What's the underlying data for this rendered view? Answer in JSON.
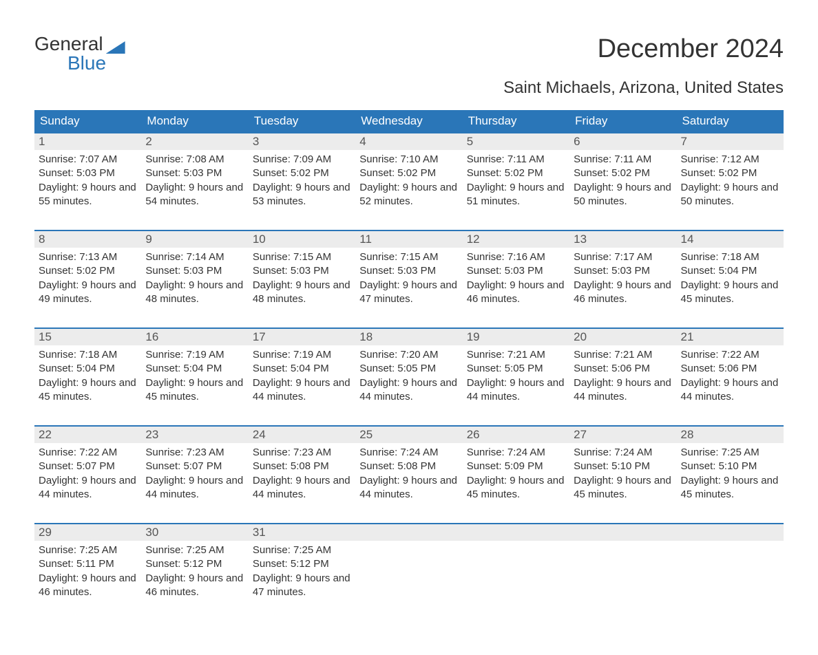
{
  "logo": {
    "word1": "General",
    "word2": "Blue"
  },
  "title": "December 2024",
  "location": "Saint Michaels, Arizona, United States",
  "colors": {
    "accent": "#2a76b8",
    "header_text": "#ffffff",
    "daynum_bg": "#ececec",
    "text": "#333333",
    "background": "#ffffff"
  },
  "day_headers": [
    "Sunday",
    "Monday",
    "Tuesday",
    "Wednesday",
    "Thursday",
    "Friday",
    "Saturday"
  ],
  "weeks": [
    [
      {
        "n": "1",
        "sr": "Sunrise: 7:07 AM",
        "ss": "Sunset: 5:03 PM",
        "dl": "Daylight: 9 hours and 55 minutes."
      },
      {
        "n": "2",
        "sr": "Sunrise: 7:08 AM",
        "ss": "Sunset: 5:03 PM",
        "dl": "Daylight: 9 hours and 54 minutes."
      },
      {
        "n": "3",
        "sr": "Sunrise: 7:09 AM",
        "ss": "Sunset: 5:02 PM",
        "dl": "Daylight: 9 hours and 53 minutes."
      },
      {
        "n": "4",
        "sr": "Sunrise: 7:10 AM",
        "ss": "Sunset: 5:02 PM",
        "dl": "Daylight: 9 hours and 52 minutes."
      },
      {
        "n": "5",
        "sr": "Sunrise: 7:11 AM",
        "ss": "Sunset: 5:02 PM",
        "dl": "Daylight: 9 hours and 51 minutes."
      },
      {
        "n": "6",
        "sr": "Sunrise: 7:11 AM",
        "ss": "Sunset: 5:02 PM",
        "dl": "Daylight: 9 hours and 50 minutes."
      },
      {
        "n": "7",
        "sr": "Sunrise: 7:12 AM",
        "ss": "Sunset: 5:02 PM",
        "dl": "Daylight: 9 hours and 50 minutes."
      }
    ],
    [
      {
        "n": "8",
        "sr": "Sunrise: 7:13 AM",
        "ss": "Sunset: 5:02 PM",
        "dl": "Daylight: 9 hours and 49 minutes."
      },
      {
        "n": "9",
        "sr": "Sunrise: 7:14 AM",
        "ss": "Sunset: 5:03 PM",
        "dl": "Daylight: 9 hours and 48 minutes."
      },
      {
        "n": "10",
        "sr": "Sunrise: 7:15 AM",
        "ss": "Sunset: 5:03 PM",
        "dl": "Daylight: 9 hours and 48 minutes."
      },
      {
        "n": "11",
        "sr": "Sunrise: 7:15 AM",
        "ss": "Sunset: 5:03 PM",
        "dl": "Daylight: 9 hours and 47 minutes."
      },
      {
        "n": "12",
        "sr": "Sunrise: 7:16 AM",
        "ss": "Sunset: 5:03 PM",
        "dl": "Daylight: 9 hours and 46 minutes."
      },
      {
        "n": "13",
        "sr": "Sunrise: 7:17 AM",
        "ss": "Sunset: 5:03 PM",
        "dl": "Daylight: 9 hours and 46 minutes."
      },
      {
        "n": "14",
        "sr": "Sunrise: 7:18 AM",
        "ss": "Sunset: 5:04 PM",
        "dl": "Daylight: 9 hours and 45 minutes."
      }
    ],
    [
      {
        "n": "15",
        "sr": "Sunrise: 7:18 AM",
        "ss": "Sunset: 5:04 PM",
        "dl": "Daylight: 9 hours and 45 minutes."
      },
      {
        "n": "16",
        "sr": "Sunrise: 7:19 AM",
        "ss": "Sunset: 5:04 PM",
        "dl": "Daylight: 9 hours and 45 minutes."
      },
      {
        "n": "17",
        "sr": "Sunrise: 7:19 AM",
        "ss": "Sunset: 5:04 PM",
        "dl": "Daylight: 9 hours and 44 minutes."
      },
      {
        "n": "18",
        "sr": "Sunrise: 7:20 AM",
        "ss": "Sunset: 5:05 PM",
        "dl": "Daylight: 9 hours and 44 minutes."
      },
      {
        "n": "19",
        "sr": "Sunrise: 7:21 AM",
        "ss": "Sunset: 5:05 PM",
        "dl": "Daylight: 9 hours and 44 minutes."
      },
      {
        "n": "20",
        "sr": "Sunrise: 7:21 AM",
        "ss": "Sunset: 5:06 PM",
        "dl": "Daylight: 9 hours and 44 minutes."
      },
      {
        "n": "21",
        "sr": "Sunrise: 7:22 AM",
        "ss": "Sunset: 5:06 PM",
        "dl": "Daylight: 9 hours and 44 minutes."
      }
    ],
    [
      {
        "n": "22",
        "sr": "Sunrise: 7:22 AM",
        "ss": "Sunset: 5:07 PM",
        "dl": "Daylight: 9 hours and 44 minutes."
      },
      {
        "n": "23",
        "sr": "Sunrise: 7:23 AM",
        "ss": "Sunset: 5:07 PM",
        "dl": "Daylight: 9 hours and 44 minutes."
      },
      {
        "n": "24",
        "sr": "Sunrise: 7:23 AM",
        "ss": "Sunset: 5:08 PM",
        "dl": "Daylight: 9 hours and 44 minutes."
      },
      {
        "n": "25",
        "sr": "Sunrise: 7:24 AM",
        "ss": "Sunset: 5:08 PM",
        "dl": "Daylight: 9 hours and 44 minutes."
      },
      {
        "n": "26",
        "sr": "Sunrise: 7:24 AM",
        "ss": "Sunset: 5:09 PM",
        "dl": "Daylight: 9 hours and 45 minutes."
      },
      {
        "n": "27",
        "sr": "Sunrise: 7:24 AM",
        "ss": "Sunset: 5:10 PM",
        "dl": "Daylight: 9 hours and 45 minutes."
      },
      {
        "n": "28",
        "sr": "Sunrise: 7:25 AM",
        "ss": "Sunset: 5:10 PM",
        "dl": "Daylight: 9 hours and 45 minutes."
      }
    ],
    [
      {
        "n": "29",
        "sr": "Sunrise: 7:25 AM",
        "ss": "Sunset: 5:11 PM",
        "dl": "Daylight: 9 hours and 46 minutes."
      },
      {
        "n": "30",
        "sr": "Sunrise: 7:25 AM",
        "ss": "Sunset: 5:12 PM",
        "dl": "Daylight: 9 hours and 46 minutes."
      },
      {
        "n": "31",
        "sr": "Sunrise: 7:25 AM",
        "ss": "Sunset: 5:12 PM",
        "dl": "Daylight: 9 hours and 47 minutes."
      },
      null,
      null,
      null,
      null
    ]
  ]
}
